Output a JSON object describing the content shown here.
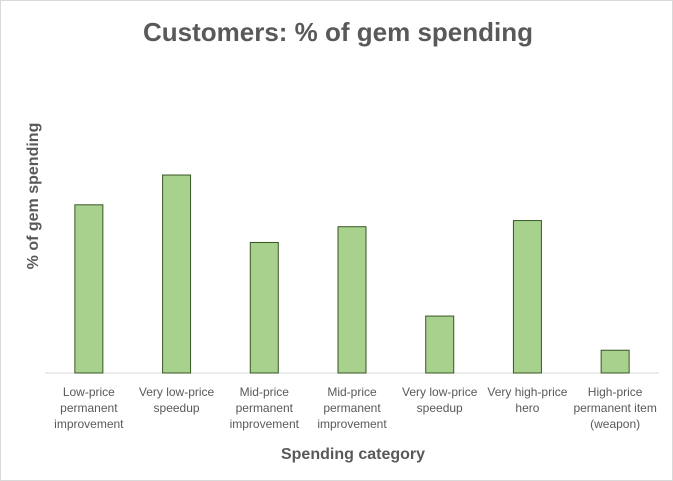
{
  "chart_data": {
    "type": "bar",
    "title": "Customers: % of gem spending",
    "x_label": "Spending category",
    "y_label": "% of gem spending",
    "categories": [
      "Low-price permanent improvement",
      "Very low-price speedup",
      "Mid-price permanent improvement",
      "Mid-price permanent improvement",
      "Very low-price speedup",
      "Very high-price hero",
      "High-price permanent item (weapon)"
    ],
    "values": [
      19.2,
      22.6,
      14.9,
      16.7,
      6.5,
      17.4,
      2.6
    ],
    "color": "#a9d18e",
    "edge_color": "#375623",
    "ylim": [
      0,
      25
    ]
  }
}
